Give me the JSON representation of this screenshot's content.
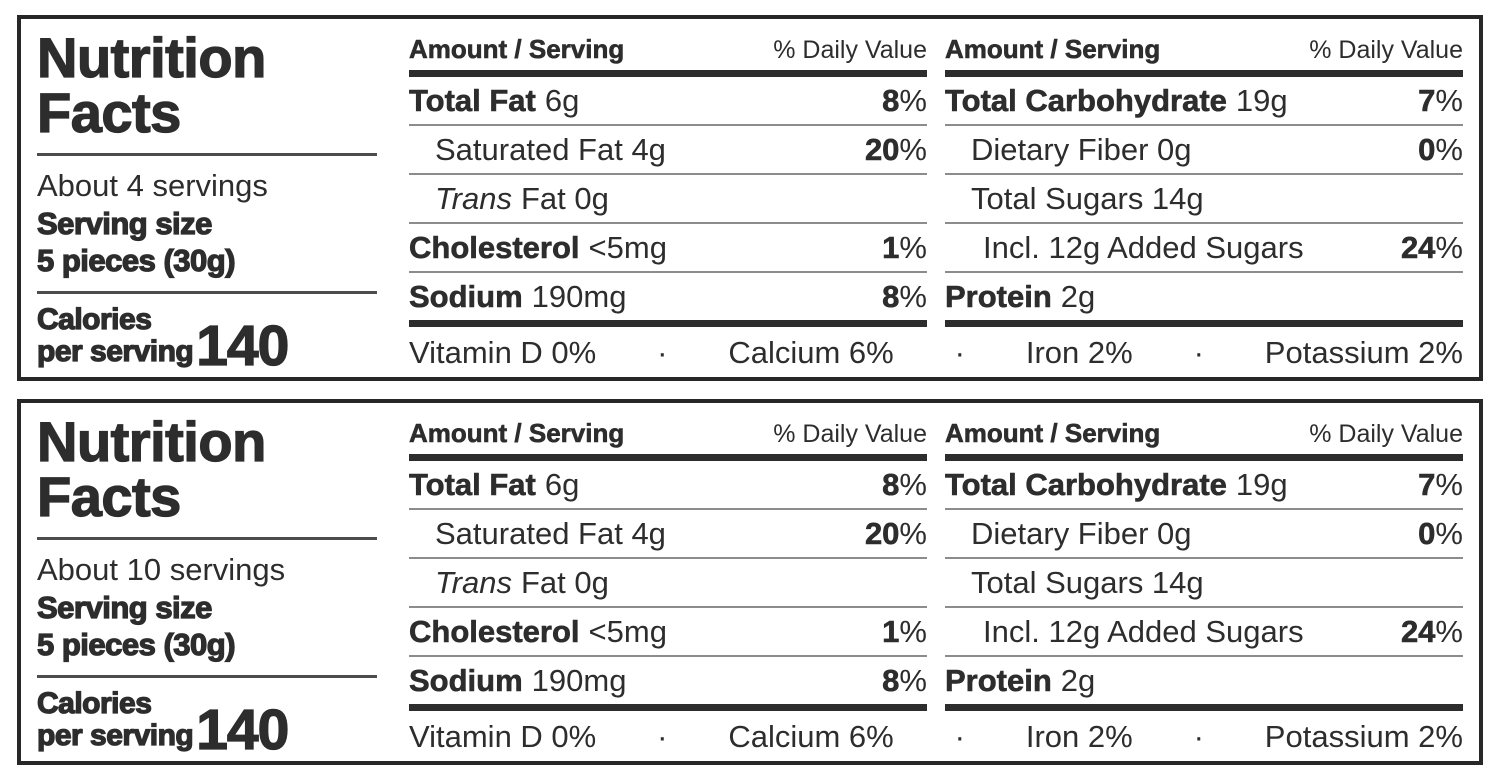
{
  "colors": {
    "text": "#2d2d2d",
    "border": "#272727",
    "hairline": "#8c8c8c",
    "thick_bar": "#2d2d2d"
  },
  "shared": {
    "title_line1": "Nutrition",
    "title_line2": "Facts",
    "serving_size_line1": "Serving size",
    "serving_size_line2": "5 pieces (30g)",
    "calories_line1": "Calories",
    "calories_line2": "per serving",
    "calories_value": "140",
    "header": {
      "amount": "Amount / Serving",
      "dv": "% Daily Value"
    },
    "fat_rows": {
      "r1": {
        "name": "Total Fat",
        "amt": "6g",
        "dv": "8",
        "pct": "%"
      },
      "r2": {
        "name": "Saturated Fat 4g",
        "dv": "20",
        "pct": "%"
      },
      "r3": {
        "name_italic": "Trans",
        "rest": "Fat 0g"
      },
      "r4": {
        "name": "Cholesterol",
        "amt": "<5mg",
        "dv": "1",
        "pct": "%"
      },
      "r5": {
        "name": "Sodium",
        "amt": "190mg",
        "dv": "8",
        "pct": "%"
      }
    },
    "carb_rows": {
      "r1": {
        "name": "Total Carbohydrate",
        "amt": "19g",
        "dv": "7",
        "pct": "%"
      },
      "r2": {
        "name": "Dietary Fiber 0g",
        "dv": "0",
        "pct": "%"
      },
      "r3": {
        "name": "Total Sugars 14g"
      },
      "r4": {
        "name": "Incl. 12g Added Sugars",
        "dv": "24",
        "pct": "%"
      },
      "r5": {
        "name": "Protein",
        "amt": "2g"
      }
    },
    "micros": {
      "m1": "Vitamin D 0%",
      "b1": "·",
      "m2": "Calcium 6%",
      "b2": "·",
      "m3": "Iron 2%",
      "b3": "·",
      "m4": "Potassium 2%"
    }
  },
  "label_top": {
    "servings": "About 4 servings"
  },
  "label_bottom": {
    "servings": "About 10 servings"
  }
}
